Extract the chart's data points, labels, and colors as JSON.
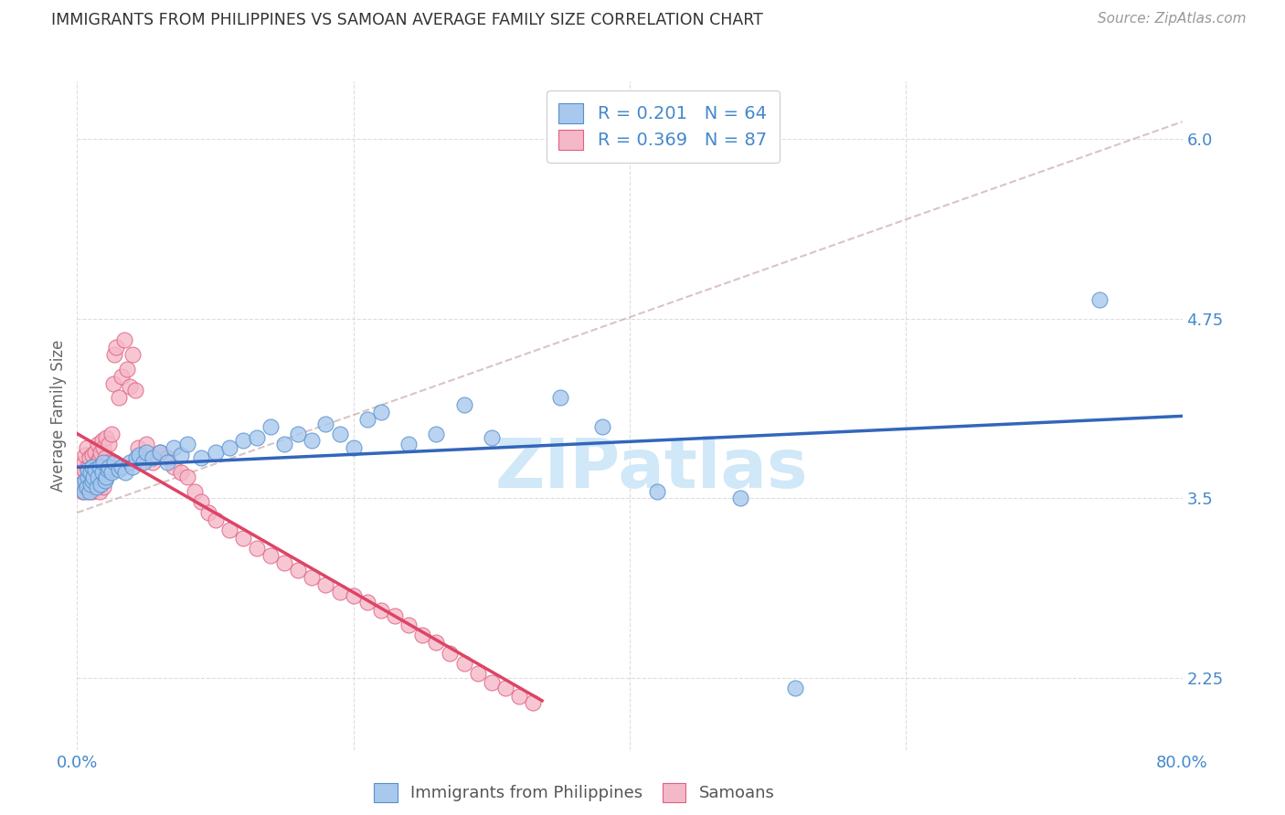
{
  "title": "IMMIGRANTS FROM PHILIPPINES VS SAMOAN AVERAGE FAMILY SIZE CORRELATION CHART",
  "source": "Source: ZipAtlas.com",
  "ylabel": "Average Family Size",
  "xlim": [
    0.0,
    0.8
  ],
  "ylim": [
    1.75,
    6.4
  ],
  "yticks": [
    2.25,
    3.5,
    4.75,
    6.0
  ],
  "xticks": [
    0.0,
    0.2,
    0.4,
    0.6,
    0.8
  ],
  "xticklabels": [
    "0.0%",
    "",
    "",
    "",
    "80.0%"
  ],
  "watermark": "ZIPatlas",
  "legend_label1": "Immigrants from Philippines",
  "legend_label2": "Samoans",
  "blue_dot_color": "#a8c8ee",
  "blue_edge_color": "#5590cc",
  "pink_dot_color": "#f5b8c8",
  "pink_edge_color": "#e06080",
  "blue_line_color": "#3366bb",
  "pink_line_color": "#dd4466",
  "dashed_line_color": "#ccaaaa",
  "axis_tick_color": "#4488cc",
  "grid_color": "#dddddd",
  "ylabel_color": "#666666",
  "title_color": "#333333",
  "source_color": "#999999",
  "watermark_color": "#d0e8f8",
  "legend_r1": "R = 0.201   N = 64",
  "legend_r2": "R = 0.369   N = 87",
  "phil_x": [
    0.003,
    0.005,
    0.006,
    0.007,
    0.008,
    0.008,
    0.009,
    0.01,
    0.01,
    0.011,
    0.011,
    0.012,
    0.013,
    0.014,
    0.015,
    0.016,
    0.017,
    0.018,
    0.019,
    0.02,
    0.021,
    0.022,
    0.023,
    0.025,
    0.027,
    0.03,
    0.032,
    0.035,
    0.038,
    0.04,
    0.043,
    0.045,
    0.048,
    0.05,
    0.055,
    0.06,
    0.065,
    0.07,
    0.075,
    0.08,
    0.09,
    0.1,
    0.11,
    0.12,
    0.13,
    0.14,
    0.15,
    0.16,
    0.17,
    0.18,
    0.19,
    0.2,
    0.21,
    0.22,
    0.24,
    0.26,
    0.28,
    0.3,
    0.35,
    0.38,
    0.42,
    0.48,
    0.52,
    0.74
  ],
  "phil_y": [
    3.6,
    3.55,
    3.62,
    3.58,
    3.65,
    3.7,
    3.55,
    3.6,
    3.68,
    3.72,
    3.62,
    3.65,
    3.7,
    3.58,
    3.65,
    3.72,
    3.6,
    3.68,
    3.75,
    3.62,
    3.65,
    3.7,
    3.72,
    3.68,
    3.75,
    3.7,
    3.72,
    3.68,
    3.75,
    3.72,
    3.78,
    3.8,
    3.75,
    3.82,
    3.78,
    3.82,
    3.75,
    3.85,
    3.8,
    3.88,
    3.78,
    3.82,
    3.85,
    3.9,
    3.92,
    4.0,
    3.88,
    3.95,
    3.9,
    4.02,
    3.95,
    3.85,
    4.05,
    4.1,
    3.88,
    3.95,
    4.15,
    3.92,
    4.2,
    4.0,
    3.55,
    3.5,
    2.18,
    4.88
  ],
  "samo_x": [
    0.002,
    0.003,
    0.004,
    0.005,
    0.005,
    0.006,
    0.006,
    0.007,
    0.007,
    0.008,
    0.008,
    0.009,
    0.009,
    0.01,
    0.01,
    0.011,
    0.011,
    0.012,
    0.012,
    0.013,
    0.013,
    0.014,
    0.014,
    0.015,
    0.015,
    0.016,
    0.016,
    0.017,
    0.017,
    0.018,
    0.018,
    0.019,
    0.019,
    0.02,
    0.02,
    0.021,
    0.022,
    0.023,
    0.024,
    0.025,
    0.026,
    0.027,
    0.028,
    0.03,
    0.032,
    0.034,
    0.036,
    0.038,
    0.04,
    0.042,
    0.044,
    0.046,
    0.048,
    0.05,
    0.055,
    0.06,
    0.065,
    0.07,
    0.075,
    0.08,
    0.085,
    0.09,
    0.095,
    0.1,
    0.11,
    0.12,
    0.13,
    0.14,
    0.15,
    0.16,
    0.17,
    0.18,
    0.19,
    0.2,
    0.21,
    0.22,
    0.23,
    0.24,
    0.25,
    0.26,
    0.27,
    0.28,
    0.29,
    0.3,
    0.31,
    0.32,
    0.33
  ],
  "samo_y": [
    3.6,
    3.65,
    3.55,
    3.7,
    3.75,
    3.58,
    3.8,
    3.62,
    3.85,
    3.55,
    3.72,
    3.65,
    3.78,
    3.58,
    3.68,
    3.8,
    3.55,
    3.72,
    3.62,
    3.82,
    3.58,
    3.75,
    3.65,
    3.88,
    3.6,
    3.78,
    3.55,
    3.82,
    3.68,
    3.9,
    3.62,
    3.85,
    3.58,
    3.78,
    3.65,
    3.92,
    3.75,
    3.88,
    3.7,
    3.95,
    4.3,
    4.5,
    4.55,
    4.2,
    4.35,
    4.6,
    4.4,
    4.28,
    4.5,
    4.25,
    3.85,
    3.75,
    3.8,
    3.88,
    3.75,
    3.82,
    3.78,
    3.72,
    3.68,
    3.65,
    3.55,
    3.48,
    3.4,
    3.35,
    3.28,
    3.22,
    3.15,
    3.1,
    3.05,
    3.0,
    2.95,
    2.9,
    2.85,
    2.82,
    2.78,
    2.72,
    2.68,
    2.62,
    2.55,
    2.5,
    2.42,
    2.35,
    2.28,
    2.22,
    2.18,
    2.12,
    2.08
  ]
}
